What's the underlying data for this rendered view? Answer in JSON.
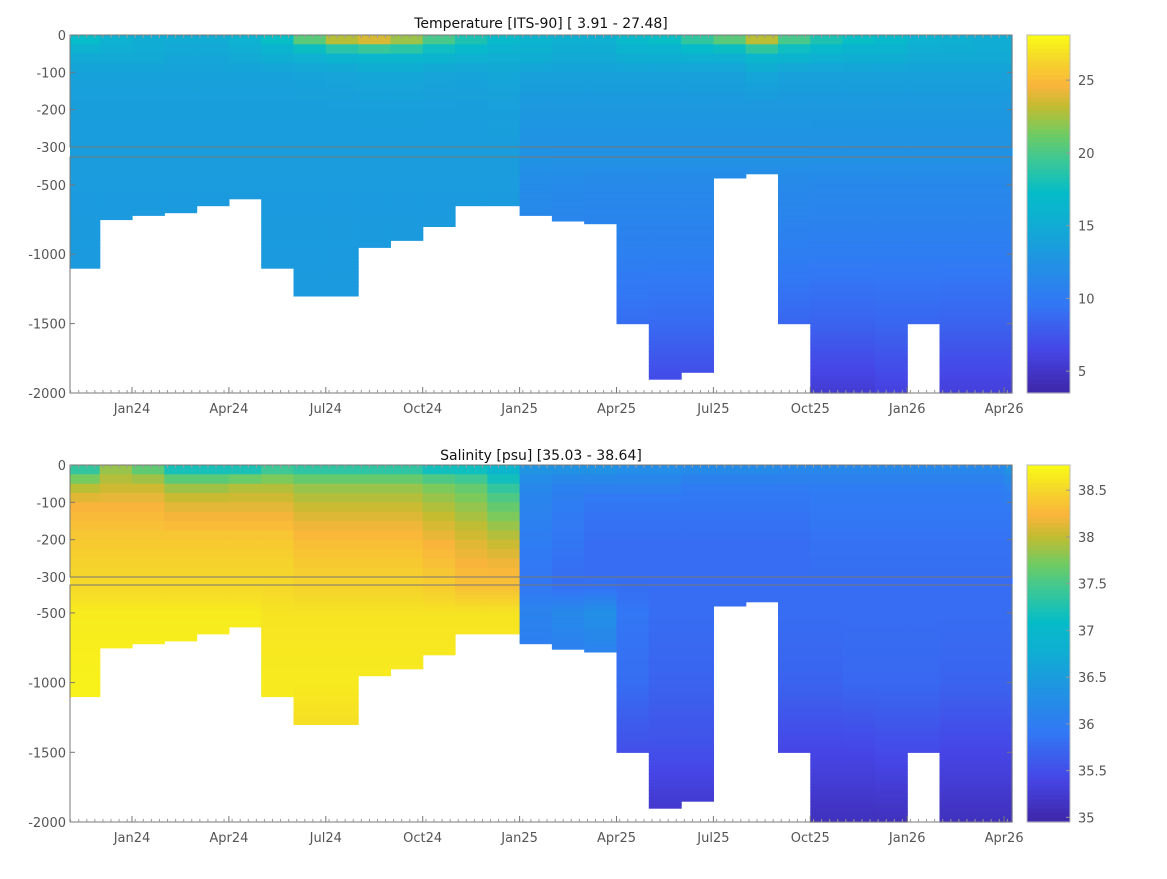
{
  "chart_data": [
    {
      "type": "heatmap",
      "title": "Temperature [ITS-90]   [ 3.91 - 27.48]",
      "xticks": [
        "Jan24",
        "Apr24",
        "Jul24",
        "Oct24",
        "Jan25",
        "Apr25",
        "Jul25",
        "Oct25",
        "Jan26",
        "Apr26"
      ],
      "yticks_upper": [
        "0",
        "-100",
        "-200",
        "-300"
      ],
      "yticks_lower": [
        "-500",
        "-1000",
        "-1500",
        "-2000"
      ],
      "colorbar_ticks": [
        "5",
        "10",
        "15",
        "20",
        "25"
      ],
      "colorbar_values": [
        5,
        10,
        15,
        20,
        25
      ],
      "clim": [
        3.5,
        28.1
      ],
      "months": [
        "Nov23",
        "Dec23",
        "Jan24",
        "Feb24",
        "Mar24",
        "Apr24",
        "May24",
        "Jun24",
        "Jul24",
        "Aug24",
        "Sep24",
        "Oct24",
        "Nov24",
        "Dec24",
        "Jan25",
        "Feb25",
        "Mar25",
        "Apr25",
        "May25",
        "Jun25",
        "Jul25",
        "Aug25",
        "Sep25",
        "Oct25",
        "Nov25",
        "Dec25",
        "Jan26",
        "Feb26",
        "Mar26",
        "Apr26"
      ],
      "depth_levels": [
        0,
        50,
        100,
        200,
        300,
        500,
        1000,
        1500,
        2000
      ],
      "max_depth": [
        1100,
        750,
        720,
        700,
        650,
        600,
        1100,
        1300,
        1300,
        950,
        900,
        800,
        650,
        650,
        720,
        760,
        780,
        1500,
        1900,
        1850,
        450,
        420,
        1500,
        2000,
        2000,
        2000,
        1500,
        2000,
        2000,
        2000
      ],
      "values": [
        [
          18,
          15,
          14,
          13.6,
          13.5,
          13.4,
          13.3,
          13.2,
          13.2
        ],
        [
          16,
          15,
          14,
          13.6,
          13.5,
          13.4,
          13.3,
          13.2,
          13.2
        ],
        [
          15,
          15,
          14,
          13.6,
          13.5,
          13.4,
          13.3,
          13.2,
          13.2
        ],
        [
          15,
          14.6,
          14,
          13.6,
          13.5,
          13.4,
          13.3,
          13.2,
          13.2
        ],
        [
          15,
          14.6,
          14,
          13.6,
          13.5,
          13.4,
          13.3,
          13.2,
          13.2
        ],
        [
          16,
          15,
          14,
          13.6,
          13.5,
          13.4,
          13.3,
          13.2,
          13.2
        ],
        [
          18,
          15.5,
          14,
          13.6,
          13.5,
          13.4,
          13.3,
          13.2,
          13.2
        ],
        [
          22,
          16,
          14.2,
          13.6,
          13.5,
          13.4,
          13.3,
          13.2,
          13.2
        ],
        [
          25,
          16.5,
          14.3,
          13.6,
          13.5,
          13.4,
          13.3,
          13.2,
          13.2
        ],
        [
          26,
          17,
          14.5,
          13.7,
          13.5,
          13.4,
          13.3,
          13.2,
          13.2
        ],
        [
          24,
          17,
          14.5,
          13.7,
          13.5,
          13.4,
          13.3,
          13.2,
          13.2
        ],
        [
          21,
          16.5,
          14.3,
          13.6,
          13.5,
          13.4,
          13.3,
          13.2,
          13.2
        ],
        [
          19,
          16,
          14.2,
          13.6,
          13.5,
          13.4,
          13.3,
          13.2,
          13.2
        ],
        [
          17,
          15.5,
          14.5,
          13.8,
          13.5,
          13.4,
          13.3,
          13.2,
          13.2
        ],
        [
          16,
          15.5,
          14,
          13,
          12.5,
          11.8,
          10.8,
          9.2,
          6.5
        ],
        [
          15.5,
          15,
          14,
          13,
          12.5,
          11.6,
          10.6,
          9,
          6.5
        ],
        [
          15.5,
          15,
          14,
          13,
          12.5,
          11.5,
          10.5,
          9,
          6.5
        ],
        [
          17,
          15.5,
          14,
          13,
          12.5,
          11.5,
          10.5,
          9,
          6.5
        ],
        [
          18,
          15.5,
          14,
          13,
          12.5,
          11.5,
          10.5,
          8.8,
          6.3
        ],
        [
          20,
          16,
          14,
          13,
          12.5,
          11.5,
          10.5,
          8.8,
          6.3
        ],
        [
          22,
          16,
          14,
          13,
          12.5,
          11.5,
          10.5,
          9,
          6.5
        ],
        [
          25,
          17,
          14.5,
          13,
          12.5,
          11.5,
          10.5,
          9,
          6.5
        ],
        [
          21,
          16.5,
          14,
          13,
          12.5,
          11.5,
          10.3,
          8.5,
          6
        ],
        [
          19,
          16,
          14,
          13,
          12.4,
          11.4,
          10.2,
          8.3,
          5.5
        ],
        [
          18,
          15.5,
          14,
          13,
          12.4,
          11.4,
          10.2,
          8.3,
          5.5
        ],
        [
          17,
          15.5,
          14,
          13,
          12.4,
          11.4,
          10.2,
          8.5,
          6
        ],
        [
          16,
          15,
          14,
          13,
          12.4,
          11.4,
          10.2,
          8.5,
          6
        ],
        [
          15.5,
          15,
          14,
          13,
          12.4,
          11.4,
          10.2,
          8.3,
          5.8
        ],
        [
          15,
          15,
          14,
          13,
          12.4,
          11.4,
          10.2,
          8.3,
          5.8
        ],
        [
          15,
          15,
          14,
          13,
          12.4,
          11.4,
          10.2,
          8.3,
          5.8
        ]
      ]
    },
    {
      "type": "heatmap",
      "title": "Salinity [psu]   [35.03 - 38.64]",
      "xticks": [
        "Jan24",
        "Apr24",
        "Jul24",
        "Oct24",
        "Jan25",
        "Apr25",
        "Jul25",
        "Oct25",
        "Jan26",
        "Apr26"
      ],
      "yticks_upper": [
        "0",
        "-100",
        "-200",
        "-300"
      ],
      "yticks_lower": [
        "-500",
        "-1000",
        "-1500",
        "-2000"
      ],
      "colorbar_ticks": [
        "35",
        "35.5",
        "36",
        "36.5",
        "37",
        "37.5",
        "38",
        "38.5"
      ],
      "colorbar_values": [
        35,
        35.5,
        36,
        36.5,
        37,
        37.5,
        38,
        38.5
      ],
      "clim": [
        34.95,
        38.77
      ],
      "months": [
        "Nov23",
        "Dec23",
        "Jan24",
        "Feb24",
        "Mar24",
        "Apr24",
        "May24",
        "Jun24",
        "Jul24",
        "Aug24",
        "Sep24",
        "Oct24",
        "Nov24",
        "Dec24",
        "Jan25",
        "Feb25",
        "Mar25",
        "Apr25",
        "May25",
        "Jun25",
        "Jul25",
        "Aug25",
        "Sep25",
        "Oct25",
        "Nov25",
        "Dec25",
        "Jan26",
        "Feb26",
        "Mar26",
        "Apr26"
      ],
      "depth_levels": [
        0,
        50,
        100,
        200,
        300,
        500,
        1000,
        1500,
        2000
      ],
      "max_depth": [
        1100,
        750,
        720,
        700,
        650,
        600,
        1100,
        1300,
        1300,
        950,
        900,
        800,
        650,
        650,
        720,
        760,
        780,
        1500,
        1900,
        1850,
        450,
        420,
        1500,
        2000,
        2000,
        2000,
        1500,
        2000,
        2000,
        2000
      ],
      "values": [
        [
          37.2,
          37.9,
          38.2,
          38.4,
          38.5,
          38.65,
          38.7,
          38.7,
          38.7
        ],
        [
          37.8,
          38,
          38.2,
          38.4,
          38.5,
          38.65,
          38.7,
          38.7,
          38.7
        ],
        [
          37.5,
          38,
          38.2,
          38.4,
          38.5,
          38.65,
          38.7,
          38.7,
          38.7
        ],
        [
          37,
          37.8,
          38.1,
          38.4,
          38.5,
          38.65,
          38.7,
          38.7,
          38.7
        ],
        [
          37,
          37.8,
          38.1,
          38.4,
          38.5,
          38.65,
          38.7,
          38.7,
          38.7
        ],
        [
          37,
          37.9,
          38.1,
          38.4,
          38.5,
          38.65,
          38.7,
          38.7,
          38.7
        ],
        [
          37.3,
          37.9,
          38.1,
          38.4,
          38.5,
          38.6,
          38.65,
          38.6,
          38.6
        ],
        [
          37.2,
          37.8,
          38,
          38.3,
          38.45,
          38.6,
          38.65,
          38.5,
          38.5
        ],
        [
          37.2,
          37.8,
          38,
          38.3,
          38.45,
          38.6,
          38.65,
          38.5,
          38.5
        ],
        [
          37.2,
          37.8,
          38,
          38.3,
          38.45,
          38.6,
          38.65,
          38.6,
          38.6
        ],
        [
          37.2,
          37.8,
          38,
          38.3,
          38.45,
          38.6,
          38.65,
          38.6,
          38.6
        ],
        [
          37,
          37.7,
          37.9,
          38.2,
          38.4,
          38.6,
          38.65,
          38.6,
          38.6
        ],
        [
          37,
          37.6,
          37.8,
          38.1,
          38.3,
          38.6,
          38.65,
          38.6,
          38.6
        ],
        [
          36.8,
          37.3,
          37.6,
          38,
          38.3,
          38.6,
          38.65,
          38.6,
          38.6
        ],
        [
          36.4,
          36.2,
          36.1,
          36,
          35.9,
          36.1,
          35.9,
          35.6,
          35.2
        ],
        [
          36.4,
          36.1,
          36,
          35.9,
          35.8,
          36.2,
          35.9,
          35.6,
          35.2
        ],
        [
          36.4,
          36.1,
          35.9,
          35.8,
          35.8,
          36.3,
          35.9,
          35.6,
          35.2
        ],
        [
          36.3,
          36.1,
          35.9,
          35.8,
          35.8,
          35.9,
          35.8,
          35.5,
          35.2
        ],
        [
          36.3,
          36.1,
          35.9,
          35.8,
          35.8,
          35.8,
          35.7,
          35.5,
          35.15
        ],
        [
          36.3,
          36,
          35.9,
          35.8,
          35.8,
          35.8,
          35.7,
          35.5,
          35.15
        ],
        [
          36.3,
          36,
          35.9,
          35.8,
          35.8,
          35.8,
          35.7,
          35.5,
          35.15
        ],
        [
          36.3,
          36,
          35.9,
          35.8,
          35.8,
          35.8,
          35.7,
          35.5,
          35.15
        ],
        [
          36.2,
          36,
          35.9,
          35.8,
          35.8,
          35.8,
          35.7,
          35.4,
          35.1
        ],
        [
          36.2,
          36,
          35.95,
          35.85,
          35.8,
          35.8,
          35.7,
          35.4,
          35.1
        ],
        [
          36.2,
          36,
          35.95,
          35.85,
          35.8,
          35.8,
          35.75,
          35.4,
          35.1
        ],
        [
          36.2,
          36,
          35.95,
          35.85,
          35.8,
          35.8,
          35.75,
          35.45,
          35.1
        ],
        [
          36.2,
          36,
          35.95,
          35.85,
          35.8,
          35.8,
          35.75,
          35.45,
          35.1
        ],
        [
          36.2,
          36,
          35.95,
          35.85,
          35.8,
          35.8,
          35.7,
          35.4,
          35.1
        ],
        [
          36.2,
          36,
          35.95,
          35.85,
          35.8,
          35.8,
          35.7,
          35.4,
          35.1
        ],
        [
          36.4,
          36.1,
          35.95,
          35.85,
          35.8,
          35.8,
          35.7,
          35.4,
          35.1
        ]
      ]
    }
  ]
}
